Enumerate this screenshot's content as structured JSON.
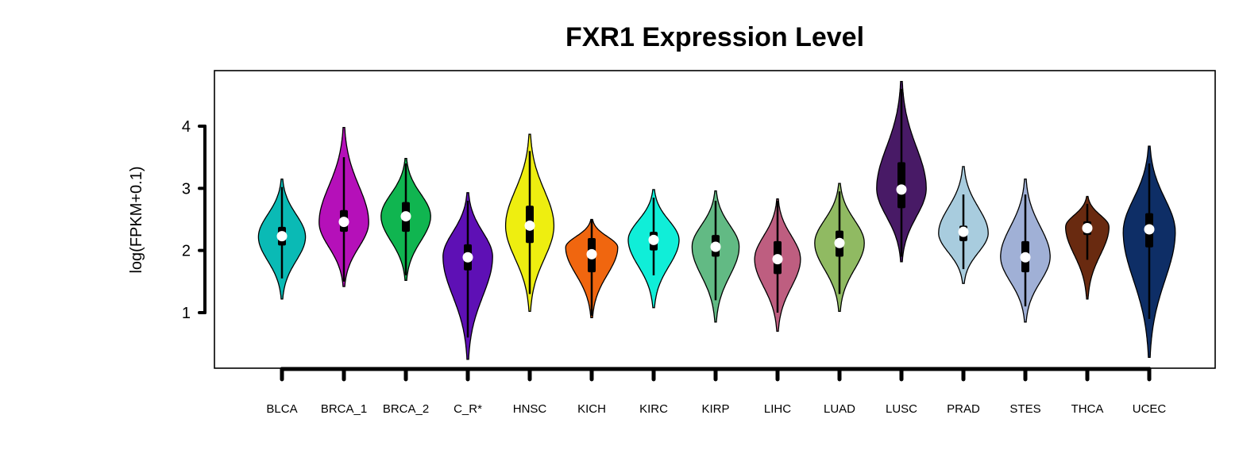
{
  "chart_data": {
    "type": "violin",
    "title": "FXR1 Expression Level",
    "ylabel": "log(FPKM+0.1)",
    "xlabel": "",
    "ylim": [
      0.1,
      4.9
    ],
    "yticks": [
      1,
      2,
      3,
      4
    ],
    "grid": false,
    "legend": "none",
    "categories": [
      "BLCA",
      "BRCA_1",
      "BRCA_2",
      "C_R*",
      "HNSC",
      "KICH",
      "KIRC",
      "KIRP",
      "LIHC",
      "LUAD",
      "LUSC",
      "PRAD",
      "STES",
      "THCA",
      "UCEC"
    ],
    "colors": [
      "#0ABAB5",
      "#B510B9",
      "#10B550",
      "#5E10B5",
      "#EEEE10",
      "#F0660F",
      "#10EED8",
      "#62BA84",
      "#BE5E80",
      "#90BA62",
      "#481A66",
      "#A8CCDE",
      "#A0B0D6",
      "#692A10",
      "#0E2E66"
    ],
    "series": [
      {
        "min": 1.22,
        "max": 3.15,
        "q1": 2.08,
        "q3": 2.38,
        "median": 2.23,
        "wlo": 1.55,
        "whi": 3.02,
        "mode": 2.22,
        "w": 0.38
      },
      {
        "min": 1.42,
        "max": 3.98,
        "q1": 2.3,
        "q3": 2.65,
        "median": 2.46,
        "wlo": 1.5,
        "whi": 3.5,
        "mode": 2.45,
        "w": 0.4
      },
      {
        "min": 1.52,
        "max": 3.48,
        "q1": 2.3,
        "q3": 2.78,
        "median": 2.55,
        "wlo": 1.6,
        "whi": 3.4,
        "mode": 2.55,
        "w": 0.4
      },
      {
        "min": 0.25,
        "max": 2.93,
        "q1": 1.68,
        "q3": 2.1,
        "median": 1.89,
        "wlo": 0.6,
        "whi": 2.8,
        "mode": 1.9,
        "w": 0.4
      },
      {
        "min": 1.02,
        "max": 3.87,
        "q1": 2.12,
        "q3": 2.72,
        "median": 2.4,
        "wlo": 1.3,
        "whi": 3.6,
        "mode": 2.4,
        "w": 0.39
      },
      {
        "min": 0.92,
        "max": 2.5,
        "q1": 1.65,
        "q3": 2.2,
        "median": 1.94,
        "wlo": 0.95,
        "whi": 2.5,
        "mode": 2.05,
        "w": 0.42
      },
      {
        "min": 1.08,
        "max": 2.98,
        "q1": 2.0,
        "q3": 2.3,
        "median": 2.17,
        "wlo": 1.6,
        "whi": 2.85,
        "mode": 2.17,
        "w": 0.41
      },
      {
        "min": 0.85,
        "max": 2.96,
        "q1": 1.9,
        "q3": 2.25,
        "median": 2.06,
        "wlo": 1.2,
        "whi": 2.8,
        "mode": 2.06,
        "w": 0.38
      },
      {
        "min": 0.7,
        "max": 2.83,
        "q1": 1.62,
        "q3": 2.15,
        "median": 1.86,
        "wlo": 1.0,
        "whi": 2.8,
        "mode": 1.86,
        "w": 0.37
      },
      {
        "min": 1.02,
        "max": 3.08,
        "q1": 1.9,
        "q3": 2.32,
        "median": 2.12,
        "wlo": 1.3,
        "whi": 2.95,
        "mode": 2.12,
        "w": 0.4
      },
      {
        "min": 1.82,
        "max": 4.72,
        "q1": 2.68,
        "q3": 3.42,
        "median": 2.98,
        "wlo": 1.9,
        "whi": 4.6,
        "mode": 3.0,
        "w": 0.4
      },
      {
        "min": 1.47,
        "max": 3.35,
        "q1": 2.15,
        "q3": 2.4,
        "median": 2.3,
        "wlo": 1.7,
        "whi": 2.9,
        "mode": 2.28,
        "w": 0.4
      },
      {
        "min": 0.85,
        "max": 3.15,
        "q1": 1.65,
        "q3": 2.15,
        "median": 1.89,
        "wlo": 1.1,
        "whi": 2.9,
        "mode": 1.9,
        "w": 0.4
      },
      {
        "min": 1.22,
        "max": 2.87,
        "q1": 2.25,
        "q3": 2.47,
        "median": 2.36,
        "wlo": 1.85,
        "whi": 2.75,
        "mode": 2.38,
        "w": 0.35
      },
      {
        "min": 0.28,
        "max": 3.68,
        "q1": 2.05,
        "q3": 2.6,
        "median": 2.34,
        "wlo": 0.9,
        "whi": 3.4,
        "mode": 2.3,
        "w": 0.42
      }
    ]
  }
}
